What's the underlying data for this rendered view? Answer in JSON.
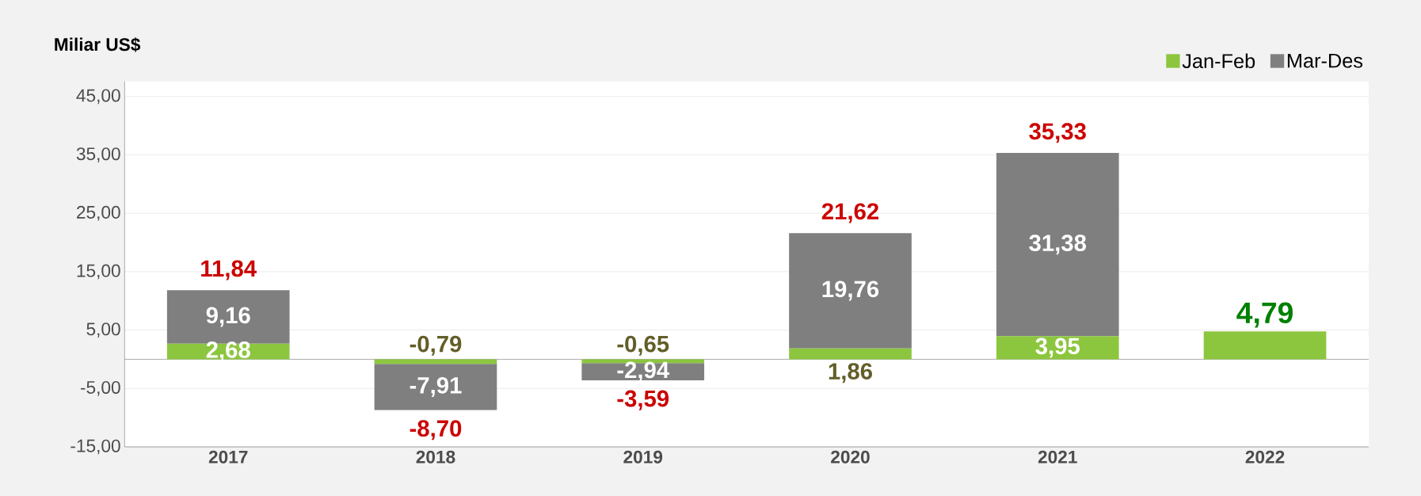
{
  "chart_data": {
    "type": "bar",
    "stacked": true,
    "ylabel": "Miliar US$",
    "categories": [
      "2017",
      "2018",
      "2019",
      "2020",
      "2021",
      "2022"
    ],
    "series": [
      {
        "name": "Jan-Feb",
        "color": "#8cc63f",
        "values": [
          2.68,
          -0.79,
          -0.65,
          1.86,
          3.95,
          4.79
        ],
        "value_labels": [
          "2,68",
          "-0,79",
          "-0,65",
          "1,86",
          "3,95",
          "4,79"
        ]
      },
      {
        "name": "Mar-Des",
        "color": "#7f7f7f",
        "values": [
          9.16,
          -7.91,
          -2.94,
          19.76,
          31.38,
          null
        ],
        "value_labels": [
          "9,16",
          "-7,91",
          "-2,94",
          "19,76",
          "31,38",
          null
        ]
      }
    ],
    "totals": [
      "11,84",
      "-8,70",
      "-3,59",
      "21,62",
      "35,33",
      null
    ],
    "ylim": [
      -15,
      47.6
    ],
    "yticks": [
      {
        "value": -15,
        "label": "-15,00"
      },
      {
        "value": -5,
        "label": "-5,00"
      },
      {
        "value": 5,
        "label": "5,00"
      },
      {
        "value": 15,
        "label": "15,00"
      },
      {
        "value": 25,
        "label": "25,00"
      },
      {
        "value": 35,
        "label": "35,00"
      },
      {
        "value": 45,
        "label": "45,00"
      }
    ],
    "grid": "y",
    "legend": "top right"
  }
}
